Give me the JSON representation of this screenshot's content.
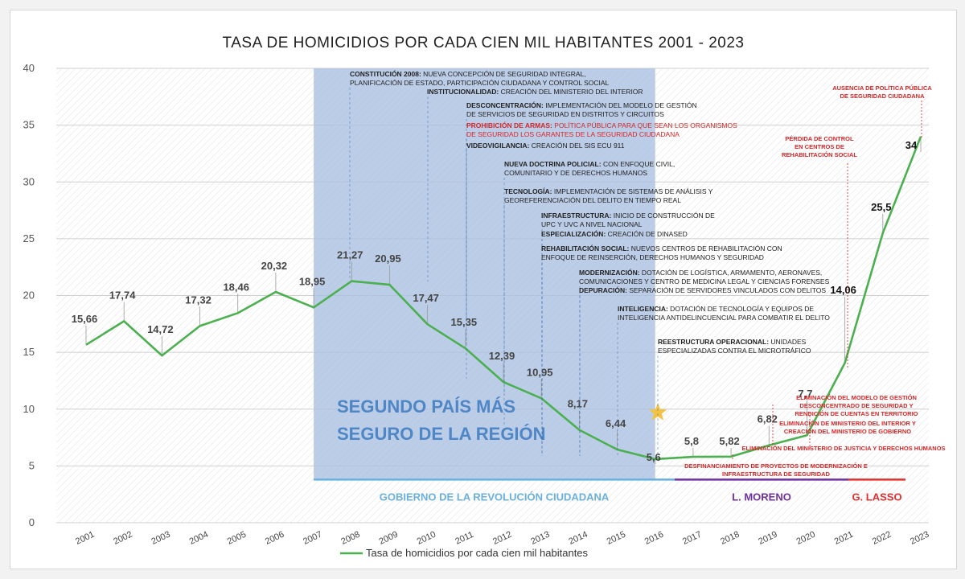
{
  "chart_data": {
    "type": "line",
    "title": "TASA DE HOMICIDIOS POR CADA CIEN MIL HABITANTES 2001 - 2023",
    "x": [
      "2001",
      "2002",
      "2003",
      "2004",
      "2005",
      "2006",
      "2007",
      "2008",
      "2009",
      "2010",
      "2011",
      "2012",
      "2013",
      "2014",
      "2015",
      "2016",
      "2017",
      "2018",
      "2019",
      "2020",
      "2021",
      "2022",
      "2023"
    ],
    "series": [
      {
        "name": "Tasa de homicidios por cada cien mil habitantes",
        "values": [
          15.66,
          17.74,
          14.72,
          17.32,
          18.46,
          20.32,
          18.95,
          21.27,
          20.95,
          17.47,
          15.35,
          12.39,
          10.95,
          8.17,
          6.44,
          5.6,
          5.8,
          5.82,
          6.82,
          7.7,
          14.06,
          25.5,
          34
        ],
        "labels": [
          "15,66",
          "17,74",
          "14,72",
          "17,32",
          "18,46",
          "20,32",
          "18,95",
          "21,27",
          "20,95",
          "17,47",
          "15,35",
          "12,39",
          "10,95",
          "8,17",
          "6,44",
          "5,6",
          "5,8",
          "5,82",
          "6,82",
          "7,7",
          "14,06",
          "25,5",
          "34"
        ],
        "color": "#4caf50"
      }
    ],
    "ylim": [
      0,
      40
    ],
    "yticks": [
      "0",
      "5",
      "10",
      "15",
      "20",
      "25",
      "30",
      "35",
      "40"
    ],
    "legend": "bottom",
    "grid": true,
    "highlight_range": [
      "2007",
      "2016"
    ],
    "highlight_color": "#a9bfe0",
    "highlight_text": [
      "SEGUNDO PAÍS MÁS",
      "SEGURO DE LA REGIÓN"
    ],
    "governments": [
      {
        "label": "GOBIERNO DE LA REVOLUCIÓN CIUDADANA",
        "from": "2007",
        "to": "2016",
        "color": "#6ab0de"
      },
      {
        "label": "L. MORENO",
        "from": "2017",
        "to": "2020",
        "color": "#7030a0"
      },
      {
        "label": "G. LASSO",
        "from": "2021",
        "to": "2022",
        "color": "#e03030"
      }
    ],
    "annotations_policy": [
      {
        "lines": [
          {
            "b": "CONSTITUCIÓN 2008:",
            "t": " NUEVA CONCEPCIÓN DE SEGURIDAD INTEGRAL,"
          },
          {
            "b": "",
            "t": "PLANIFICACIÓN DE ESTADO, PARTICIPACIÓN CIUDADANA Y CONTROL SOCIAL"
          }
        ]
      },
      {
        "lines": [
          {
            "b": "INSTITUCIONALIDAD:",
            "t": " CREACIÓN DEL MINISTERIO DEL INTERIOR"
          }
        ]
      },
      {
        "lines": [
          {
            "b": "DESCONCENTRACIÓN:",
            "t": " IMPLEMENTACIÓN DEL MODELO DE GESTIÓN"
          },
          {
            "b": "",
            "t": "DE SERVICIOS DE SEGURIDAD EN DISTRITOS Y CIRCUITOS"
          }
        ]
      },
      {
        "red": true,
        "lines": [
          {
            "b": "PROHIBICIÓN DE ARMAS:",
            "t": " POLÍTICA PÚBLICA PARA QUE SEAN LOS ORGANISMOS"
          },
          {
            "b": "",
            "t": "DE SEGURIDAD LOS GARANTES DE LA SEGURIDAD CIUDADANA"
          }
        ]
      },
      {
        "lines": [
          {
            "b": "VIDEOVIGILANCIA:",
            "t": " CREACIÓN DEL SIS ECU 911"
          }
        ]
      },
      {
        "lines": [
          {
            "b": "NUEVA DOCTRINA POLICIAL:",
            "t": " CON ENFOQUE CIVIL,"
          },
          {
            "b": "",
            "t": "COMUNITARIO Y DE DERECHOS HUMANOS"
          }
        ]
      },
      {
        "lines": [
          {
            "b": "TECNOLOGÍA:",
            "t": " IMPLEMENTACIÓN DE SISTEMAS DE ANÁLISIS Y"
          },
          {
            "b": "",
            "t": "GEOREFERENCIACIÓN DEL DELITO EN TIEMPO REAL"
          }
        ]
      },
      {
        "lines": [
          {
            "b": "INFRAESTRUCTURA:",
            "t": " INICIO DE CONSTRUCCIÓN DE"
          },
          {
            "b": "",
            "t": "UPC Y UVC A NIVEL NACIONAL"
          }
        ]
      },
      {
        "lines": [
          {
            "b": "ESPECIALIZACIÓN:",
            "t": " CREACIÓN DE DINASED"
          }
        ]
      },
      {
        "lines": [
          {
            "b": "REHABILITACIÓN SOCIAL:",
            "t": " NUEVOS CENTROS DE REHABILITACIÓN CON"
          },
          {
            "b": "",
            "t": "ENFOQUE DE REINSERCIÓN, DERECHOS HUMANOS Y SEGURIDAD"
          }
        ]
      },
      {
        "lines": [
          {
            "b": "MODERNIZACIÓN:",
            "t": " DOTACIÓN DE LOGÍSTICA, ARMAMENTO, AERONAVES,"
          },
          {
            "b": "",
            "t": "COMUNICACIONES Y CENTRO DE MEDICINA LEGAL Y CIENCIAS FORENSES"
          }
        ]
      },
      {
        "lines": [
          {
            "b": "DEPURACIÓN:",
            "t": " SEPARACIÓN DE SERVIDORES VINCULADOS CON DELITOS"
          }
        ]
      },
      {
        "lines": [
          {
            "b": "INTELIGENCIA:",
            "t": " DOTACIÓN DE TECNOLOGÍA Y EQUIPOS DE"
          },
          {
            "b": "",
            "t": "INTELIGENCIA ANTIDELINCUENCIAL PARA COMBATIR EL DELITO"
          }
        ]
      },
      {
        "lines": [
          {
            "b": "REESTRUCTURA OPERACIONAL:",
            "t": " UNIDADES"
          },
          {
            "b": "",
            "t": "ESPECIALIZADAS CONTRA EL MICROTRÁFICO"
          }
        ]
      }
    ],
    "annotations_red": [
      {
        "lines": [
          "AUSENCIA DE POLÍTICA PÚBLICA",
          "DE SEGURIDAD CIUDADANA"
        ]
      },
      {
        "lines": [
          "PÉRDIDA DE CONTROL",
          "EN CENTROS DE",
          "REHABILITACIÓN SOCIAL"
        ]
      },
      {
        "lines": [
          "ELIMINACIÓN DEL MODELO DE GESTIÓN",
          "DESCONCENTRADO  DE SEGURIDAD Y",
          "RENDICIÓN DE CUENTAS EN TERRITORIO"
        ]
      },
      {
        "lines": [
          "ELIMINACIÓN DE MINISTERIO DEL INTERIOR  Y",
          "CREACIÓN DEL MINISTERIO DE GOBIERNO"
        ]
      },
      {
        "lines": [
          "ELIMINACIÓN DEL MINISTERIO DE JUSTICIA Y DERECHOS HUMANOS"
        ]
      },
      {
        "lines": [
          "DESFINANCIAMIENTO DE PROYECTOS DE MODERNIZACIÓN E",
          "INFRAESTRUCTURA DE SEGURIDAD"
        ]
      }
    ]
  }
}
